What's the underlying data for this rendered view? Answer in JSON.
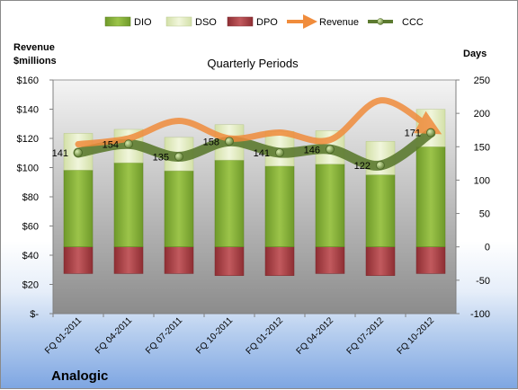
{
  "company": "Analogic",
  "chart_data": {
    "type": "bar",
    "title": "Quarterly Periods",
    "left_axis_label_line1": "Revenue",
    "left_axis_label_line2": "$millions",
    "right_axis_label": "Days",
    "categories": [
      "FQ 01-2011",
      "FQ 04-2011",
      "FQ 07-2011",
      "FQ 10-2011",
      "FQ 01-2012",
      "FQ 04-2012",
      "FQ 07-2012",
      "FQ 10-2012"
    ],
    "left_ylim": [
      0,
      160
    ],
    "left_ticks": [
      0,
      20,
      40,
      60,
      80,
      100,
      120,
      140,
      160
    ],
    "left_tick_labels": [
      "$-",
      "$20",
      "$40",
      "$60",
      "$80",
      "$100",
      "$120",
      "$140",
      "$160"
    ],
    "right_ylim": [
      -100,
      250
    ],
    "right_ticks": [
      -100,
      -50,
      0,
      50,
      100,
      150,
      200,
      250
    ],
    "right_tick_labels": [
      "-100",
      "-50",
      "0",
      "50",
      "100",
      "150",
      "200",
      "250"
    ],
    "grid": false,
    "legend_position": "top",
    "series": [
      {
        "name": "DIO",
        "type": "stacked-bar",
        "axis": "right",
        "color": "#8cb43c",
        "values": [
          115,
          126,
          114,
          130,
          121,
          124,
          108,
          150
        ]
      },
      {
        "name": "DSO",
        "type": "stacked-bar",
        "axis": "right",
        "color": "#e4edc4",
        "values": [
          55,
          50,
          50,
          53,
          52,
          50,
          50,
          56
        ]
      },
      {
        "name": "DPO",
        "type": "negative-bar",
        "axis": "right",
        "color": "#b5484c",
        "values": [
          -40,
          -40,
          -40,
          -43,
          -43,
          -40,
          -43,
          -40
        ]
      },
      {
        "name": "Revenue",
        "type": "line",
        "axis": "left",
        "color": "#f08c3c",
        "values": [
          116,
          120,
          132,
          120,
          124,
          119,
          146,
          127
        ]
      },
      {
        "name": "CCC",
        "type": "line",
        "axis": "right",
        "color": "#5c7a30",
        "values": [
          141,
          154,
          135,
          158,
          141,
          146,
          122,
          171
        ]
      }
    ],
    "data_labels": [
      "141",
      "154",
      "135",
      "158",
      "141",
      "146",
      "122",
      "171"
    ]
  }
}
